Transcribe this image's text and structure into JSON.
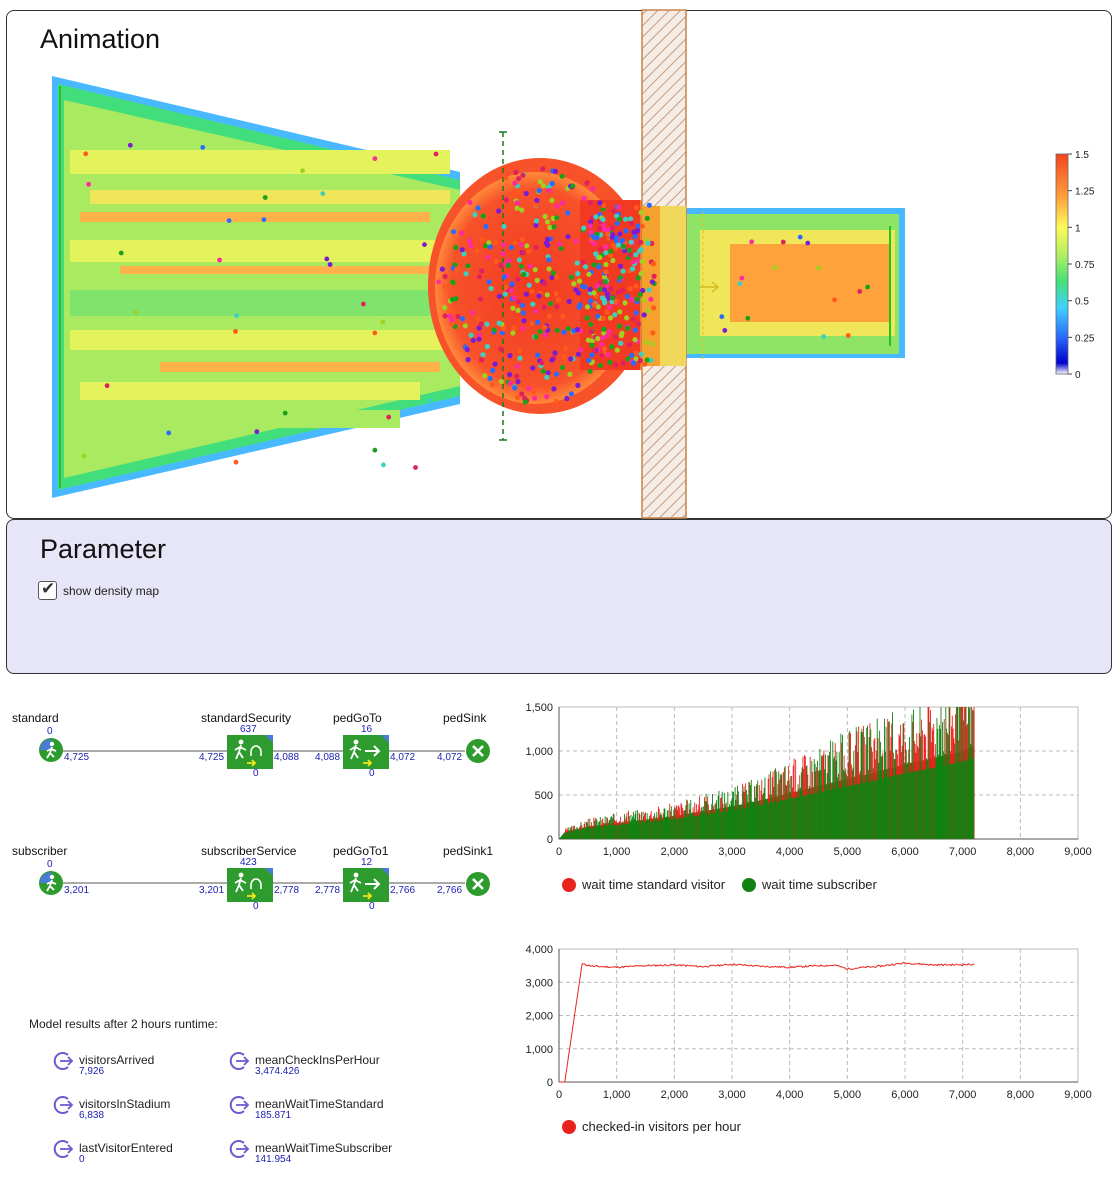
{
  "animation": {
    "title": "Animation",
    "colorbar_ticks": [
      "1.5",
      "1.25",
      "1",
      "0.75",
      "0.5",
      "0.25",
      "0"
    ]
  },
  "parameter": {
    "title": "Parameter",
    "show_density_label": "show density map",
    "show_density_checked": true
  },
  "flow": {
    "row1": {
      "source": {
        "label": "standard",
        "in": "0",
        "out": "4,725"
      },
      "service": {
        "label": "standardSecurity",
        "queue": "637",
        "in": "4,725",
        "out": "4,088",
        "bottom": "0"
      },
      "goto": {
        "label": "pedGoTo",
        "queue": "16",
        "in": "4,088",
        "out": "4,072",
        "bottom": "0"
      },
      "sink": {
        "label": "pedSink",
        "in": "4,072"
      }
    },
    "row2": {
      "source": {
        "label": "subscriber",
        "in": "0",
        "out": "3,201"
      },
      "service": {
        "label": "subscriberService",
        "queue": "423",
        "in": "3,201",
        "out": "2,778",
        "bottom": "0"
      },
      "goto": {
        "label": "pedGoTo1",
        "queue": "12",
        "in": "2,778",
        "out": "2,766",
        "bottom": "0"
      },
      "sink": {
        "label": "pedSink1",
        "in": "2,766"
      }
    }
  },
  "results": {
    "title": "Model results after 2 hours runtime:",
    "variables": [
      {
        "name": "visitorsArrived",
        "value": "7,926"
      },
      {
        "name": "meanCheckInsPerHour",
        "value": "3,474.426"
      },
      {
        "name": "visitorsInStadium",
        "value": "6,838"
      },
      {
        "name": "meanWaitTimeStandard",
        "value": "185.871"
      },
      {
        "name": "lastVisitorEntered",
        "value": "0"
      },
      {
        "name": "meanWaitTimeSubscriber",
        "value": "141.954"
      }
    ]
  },
  "colors": {
    "standard": "#e8231e",
    "subscriber": "#118211",
    "flow_green": "#2e9b2e",
    "count_blue": "#1e22b0"
  },
  "chart_data": [
    {
      "type": "bar",
      "title": "",
      "xlabel": "",
      "ylabel": "",
      "xlim": [
        0,
        9000
      ],
      "ylim": [
        0,
        1500
      ],
      "x_ticks": [
        "0",
        "1,000",
        "2,000",
        "3,000",
        "4,000",
        "5,000",
        "6,000",
        "7,000",
        "8,000",
        "9,000"
      ],
      "y_ticks": [
        "0",
        "500",
        "1,000",
        "1,500"
      ],
      "grid": true,
      "legend_position": "bottom",
      "series": [
        {
          "name": "wait time standard visitor",
          "color": "#e8231e",
          "x": [
            0,
            100,
            500,
            1000,
            2000,
            3000,
            3500,
            4000,
            4500,
            5000,
            5500,
            6000,
            6500,
            7000,
            7200
          ],
          "values": [
            0,
            90,
            180,
            230,
            320,
            460,
            560,
            700,
            820,
            950,
            1050,
            1150,
            1250,
            1400,
            1500
          ]
        },
        {
          "name": "wait time subscriber",
          "color": "#118211",
          "x": [
            0,
            100,
            500,
            1000,
            2000,
            3000,
            3500,
            4000,
            4500,
            5000,
            5500,
            6000,
            6500,
            7000,
            7200
          ],
          "values": [
            0,
            80,
            140,
            180,
            260,
            370,
            440,
            520,
            600,
            680,
            760,
            850,
            920,
            1000,
            1050
          ]
        }
      ]
    },
    {
      "type": "line",
      "title": "",
      "xlabel": "",
      "ylabel": "",
      "xlim": [
        0,
        9000
      ],
      "ylim": [
        0,
        4000
      ],
      "x_ticks": [
        "0",
        "1,000",
        "2,000",
        "3,000",
        "4,000",
        "5,000",
        "6,000",
        "7,000",
        "8,000",
        "9,000"
      ],
      "y_ticks": [
        "0",
        "1,000",
        "2,000",
        "3,000",
        "4,000"
      ],
      "grid": true,
      "legend_position": "bottom",
      "series": [
        {
          "name": "checked-in visitors per hour",
          "color": "#e8231e",
          "x": [
            0,
            100,
            400,
            600,
            1000,
            1500,
            2000,
            2500,
            3000,
            3500,
            4000,
            4500,
            4800,
            5000,
            5300,
            5500,
            6000,
            6500,
            7000,
            7200
          ],
          "values": [
            0,
            0,
            3550,
            3480,
            3450,
            3500,
            3520,
            3470,
            3540,
            3480,
            3450,
            3500,
            3510,
            3400,
            3450,
            3470,
            3580,
            3520,
            3530,
            3540
          ]
        }
      ]
    }
  ]
}
